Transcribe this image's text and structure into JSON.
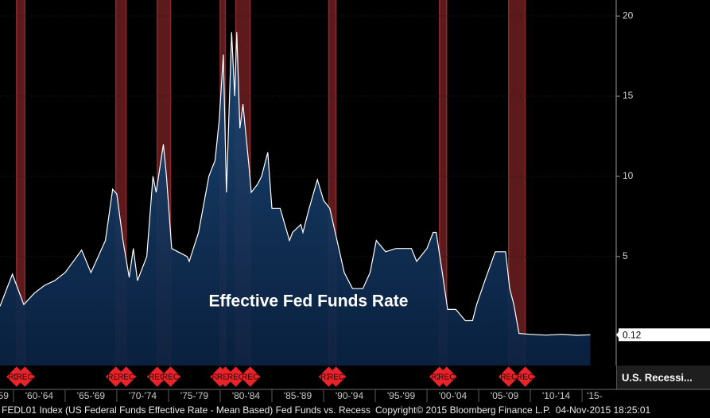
{
  "chart_data": {
    "type": "area",
    "annotation": "Effective Fed Funds Rate",
    "color": "#ffffff",
    "fill": "#0d2b52",
    "x": [
      1958.7,
      1959.9,
      1961.0,
      1962.0,
      1963.0,
      1964.0,
      1965.0,
      1966.6,
      1967.5,
      1968.9,
      1969.6,
      1970.0,
      1970.6,
      1971.2,
      1971.6,
      1972.0,
      1972.9,
      1973.5,
      1973.8,
      1974.5,
      1974.8,
      1975.3,
      1976.8,
      1977.0,
      1977.9,
      1978.9,
      1979.5,
      1979.9,
      1980.3,
      1980.6,
      1981.1,
      1981.4,
      1981.6,
      1981.9,
      1982.2,
      1982.8,
      1983.0,
      1983.6,
      1984.0,
      1984.6,
      1985.0,
      1985.8,
      1986.7,
      1987.0,
      1987.8,
      1988.0,
      1988.6,
      1989.4,
      1990.0,
      1990.6,
      1991.3,
      1992.0,
      1992.8,
      1993.8,
      1994.5,
      1995.1,
      1996.0,
      1997.0,
      1998.5,
      1999.0,
      2000.0,
      2000.6,
      2000.9,
      2001.6,
      2002.0,
      2002.8,
      2003.7,
      2004.4,
      2004.8,
      2005.6,
      2006.6,
      2007.6,
      2008.0,
      2008.4,
      2008.9,
      2010.0,
      2011.5,
      2013.0,
      2014.5,
      2015.8
    ],
    "values": [
      1.9,
      3.9,
      2.0,
      2.7,
      3.2,
      3.5,
      4.0,
      5.4,
      4.0,
      6.0,
      9.2,
      8.9,
      6.0,
      3.7,
      5.5,
      3.5,
      5.0,
      10.0,
      9.0,
      12.0,
      10.0,
      5.5,
      5.0,
      4.7,
      6.5,
      10.0,
      11.0,
      13.5,
      17.6,
      9.0,
      19.0,
      15.0,
      19.0,
      13.0,
      14.5,
      10.5,
      9.0,
      9.5,
      10.0,
      11.5,
      8.0,
      8.0,
      6.0,
      6.5,
      7.0,
      6.5,
      8.0,
      9.8,
      8.5,
      8.0,
      6.0,
      4.0,
      3.0,
      3.0,
      4.0,
      6.0,
      5.3,
      5.5,
      5.5,
      4.7,
      5.5,
      6.5,
      6.5,
      3.5,
      1.7,
      1.7,
      1.0,
      1.0,
      2.0,
      3.5,
      5.3,
      5.3,
      3.0,
      2.0,
      0.2,
      0.15,
      0.1,
      0.15,
      0.09,
      0.12
    ],
    "last_value": 0.12,
    "recessions": {
      "name": "U.S. Recessi...",
      "color": "#5c1a1c",
      "marker_label": "REC",
      "periods": [
        [
          1960.3,
          1961.1
        ],
        [
          1969.9,
          1970.9
        ],
        [
          1973.9,
          1975.2
        ],
        [
          1980.0,
          1980.5
        ],
        [
          1981.5,
          1982.9
        ],
        [
          1990.5,
          1991.2
        ],
        [
          2001.2,
          2001.9
        ],
        [
          2007.9,
          2009.5
        ]
      ]
    },
    "xlim": [
      1958.7,
      2018.3
    ],
    "xticks": [
      1960,
      1965,
      1970,
      1975,
      1980,
      1985,
      1990,
      1995,
      2000,
      2005,
      2010,
      2015
    ],
    "x_period_labels": [
      "'59",
      "'60-'64",
      "'65-'69",
      "'70-'74",
      "'75-'79",
      "'80-'84",
      "'85-'89",
      "'90-'94",
      "'95-'99",
      "'00-'04",
      "'05-'09",
      "'10-'14",
      "'15-"
    ],
    "ylim": [
      -1.8,
      21
    ],
    "yticks": [
      5,
      10,
      15,
      20
    ],
    "grid": true
  },
  "footer": {
    "source": "FEDL01 Index (US Federal Funds Effective Rate - Mean Based) Fed Funds vs. Recess",
    "copyright": "Copyright© 2015 Bloomberg Finance L.P.",
    "timestamp": "04-Nov-2015 18:25:01"
  }
}
